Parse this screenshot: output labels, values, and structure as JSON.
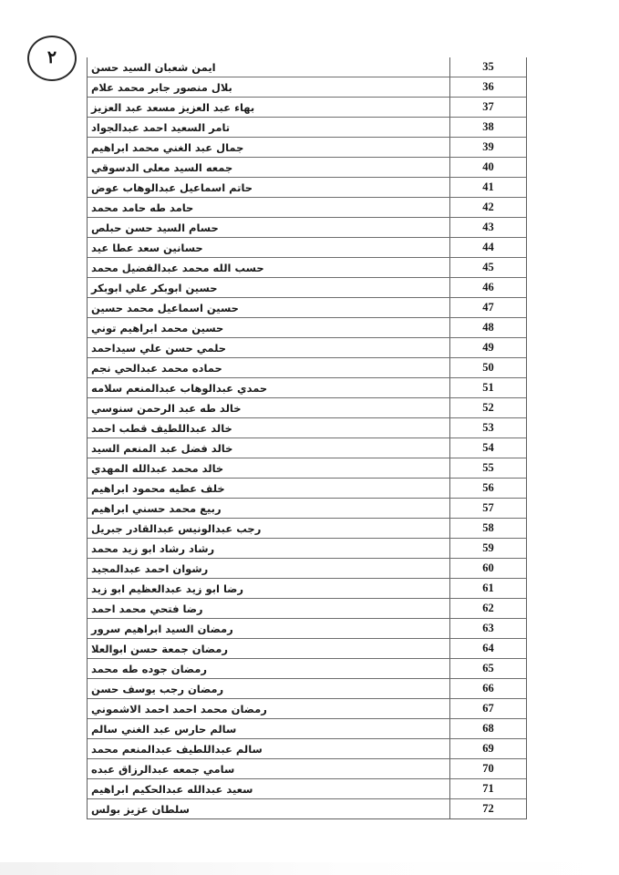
{
  "page": {
    "badge_number": "٢"
  },
  "table": {
    "serial_range": {
      "first": "35",
      "last": "72"
    },
    "rows": [
      {
        "serial": "35",
        "name": "ايمن شعبان السيد حسن"
      },
      {
        "serial": "36",
        "name": "بلال منصور جابر محمد علام"
      },
      {
        "serial": "37",
        "name": "بهاء عبد العزيز مسعد عبد العزيز"
      },
      {
        "serial": "38",
        "name": "تامر السعيد احمد عبدالجواد"
      },
      {
        "serial": "39",
        "name": "جمال عبد الغني محمد ابراهيم"
      },
      {
        "serial": "40",
        "name": "جمعه السيد معلى الدسوقي"
      },
      {
        "serial": "41",
        "name": "حاتم اسماعيل عبدالوهاب عوض"
      },
      {
        "serial": "42",
        "name": "حامد طه حامد محمد"
      },
      {
        "serial": "43",
        "name": "حسام السيد حسن حبلص"
      },
      {
        "serial": "44",
        "name": "حسانين سعد عطا عيد"
      },
      {
        "serial": "45",
        "name": "حسب الله محمد عبدالفضيل محمد"
      },
      {
        "serial": "46",
        "name": "حسين ابوبكر علي ابوبكر"
      },
      {
        "serial": "47",
        "name": "حسين اسماعيل محمد حسين"
      },
      {
        "serial": "48",
        "name": "حسين محمد ابراهيم توني"
      },
      {
        "serial": "49",
        "name": "حلمي حسن علي سيداحمد"
      },
      {
        "serial": "50",
        "name": "حماده محمد عبدالحي نجم"
      },
      {
        "serial": "51",
        "name": "حمدي عبدالوهاب عبدالمنعم سلامه"
      },
      {
        "serial": "52",
        "name": "خالد طه عبد الرحمن سنوسي"
      },
      {
        "serial": "53",
        "name": "خالد عبداللطيف قطب احمد"
      },
      {
        "serial": "54",
        "name": "خالد فضل عبد المنعم السيد"
      },
      {
        "serial": "55",
        "name": "خالد محمد عبدالله المهدي"
      },
      {
        "serial": "56",
        "name": "خلف عطيه محمود ابراهيم"
      },
      {
        "serial": "57",
        "name": "ربيع محمد حسني ابراهيم"
      },
      {
        "serial": "58",
        "name": "رجب عبدالونيس عبدالقادر جبريل"
      },
      {
        "serial": "59",
        "name": "رشاد رشاد ابو زيد محمد"
      },
      {
        "serial": "60",
        "name": "رشوان احمد عبدالمجيد"
      },
      {
        "serial": "61",
        "name": "رضا ابو زيد عبدالعظيم ابو زيد"
      },
      {
        "serial": "62",
        "name": "رضا فتحي محمد احمد"
      },
      {
        "serial": "63",
        "name": "رمضان السيد ابراهيم سرور"
      },
      {
        "serial": "64",
        "name": "رمضان جمعة حسن ابوالعلا"
      },
      {
        "serial": "65",
        "name": "رمضان جوده طه محمد"
      },
      {
        "serial": "66",
        "name": "رمضان رجب يوسف حسن"
      },
      {
        "serial": "67",
        "name": "رمضان محمد احمد احمد الاشموني"
      },
      {
        "serial": "68",
        "name": "سالم حارس عبد الغني سالم"
      },
      {
        "serial": "69",
        "name": "سالم عبداللطيف عبدالمنعم محمد"
      },
      {
        "serial": "70",
        "name": "سامي جمعه عبدالرزاق عبده"
      },
      {
        "serial": "71",
        "name": "سعيد عبدالله عبدالحكيم ابراهيم"
      },
      {
        "serial": "72",
        "name": "سلطان عزيز بولس"
      }
    ]
  },
  "colors": {
    "page_background": "#ffffff",
    "table_border": "#5e5e5e",
    "text": "#1c1c1c"
  }
}
